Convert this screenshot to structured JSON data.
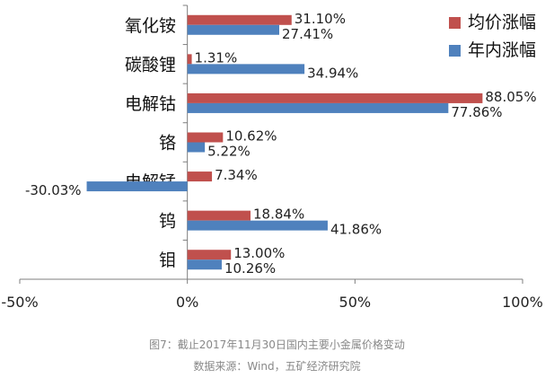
{
  "chart_data": {
    "type": "bar",
    "orientation": "horizontal",
    "categories": [
      "氧化铵",
      "碳酸锂",
      "电解钴",
      "铬",
      "电解锰",
      "钨",
      "钼"
    ],
    "series": [
      {
        "name": "均价涨幅",
        "color": "#c0504d",
        "values": [
          31.1,
          1.31,
          88.05,
          10.62,
          7.34,
          18.84,
          13.0
        ],
        "labels": [
          "31.10%",
          "1.31%",
          "88.05%",
          "10.62%",
          "7.34%",
          "18.84%",
          "13.00%"
        ]
      },
      {
        "name": "年内涨幅",
        "color": "#4f81bd",
        "values": [
          27.41,
          34.94,
          77.86,
          5.22,
          -30.03,
          41.86,
          10.26
        ],
        "labels": [
          "27.41%",
          "34.94%",
          "77.86%",
          "5.22%",
          "-30.03%",
          "41.86%",
          "10.26%"
        ]
      }
    ],
    "xlim": [
      -50,
      100
    ],
    "x_ticks": [
      -50,
      0,
      50,
      100
    ],
    "x_tick_labels": [
      "-50%",
      "0%",
      "50%",
      "100%"
    ],
    "legend_position": "top-right",
    "grid": false
  },
  "caption": {
    "line1": "图7：截止2017年11月30日国内主要小金属价格变动",
    "line2": "数据来源：Wind，五矿经济研究院"
  }
}
